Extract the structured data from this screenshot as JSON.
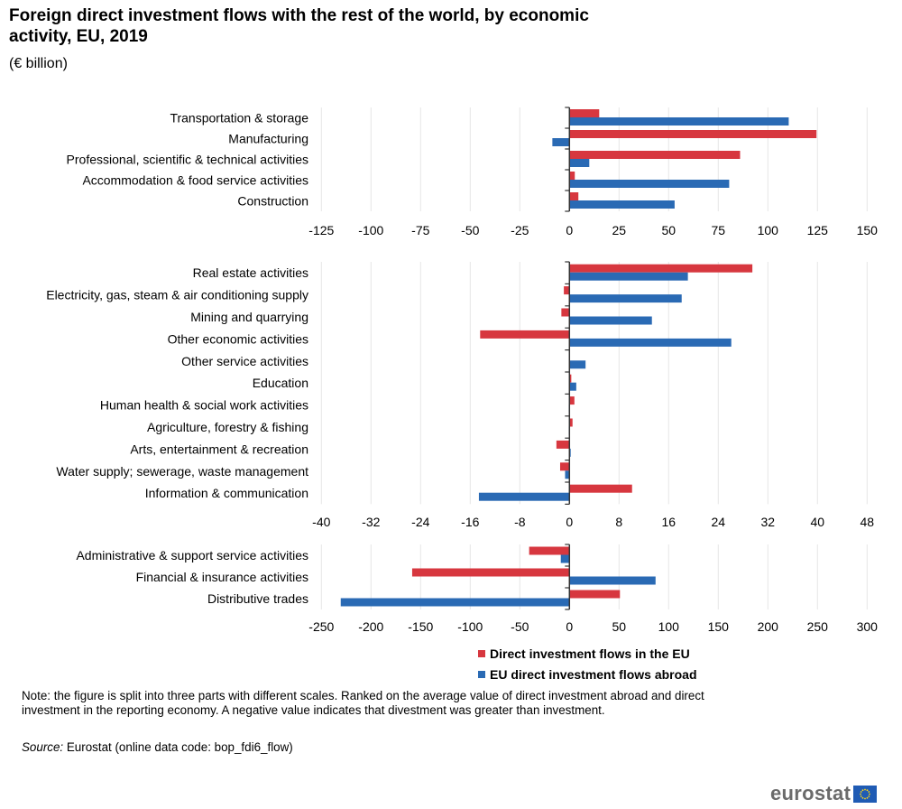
{
  "header": {
    "title": "Foreign direct investment flows with the rest of the world, by economic activity, EU, 2019",
    "subtitle": "(€ billion)"
  },
  "chart_data": [
    {
      "type": "bar",
      "orientation": "horizontal",
      "title": "Foreign direct investment flows with the rest of the world, by economic activity, EU, 2019",
      "subtitle": "(€ billion)",
      "categories": [
        "Transportation & storage",
        "Manufacturing",
        "Professional, scientific & technical activities",
        "Accommodation & food service activities",
        "Construction"
      ],
      "series": [
        {
          "name": "Direct investment flows in the EU",
          "values": [
            15,
            124.5,
            86,
            2.7,
            4.5
          ]
        },
        {
          "name": "EU direct investment flows abroad",
          "values": [
            110.5,
            -8.6,
            10,
            80.5,
            53
          ]
        }
      ],
      "xlim": [
        -125,
        150
      ],
      "xticks": [
        -125,
        -100,
        -75,
        -50,
        -25,
        0,
        25,
        50,
        75,
        100,
        125,
        150
      ],
      "grid": true
    },
    {
      "type": "bar",
      "orientation": "horizontal",
      "categories": [
        "Real estate activities",
        "Electricity, gas, steam & air conditioning supply",
        "Mining and quarrying",
        "Other economic activities",
        "Other service activities",
        "Education",
        "Human health & social work activities",
        "Agriculture, forestry & fishing",
        "Arts, entertainment & recreation",
        "Water supply; sewerage, waste management",
        "Information & communication"
      ],
      "series": [
        {
          "name": "Direct investment flows in the EU",
          "values": [
            29.5,
            -0.9,
            -1.3,
            -14.4,
            0,
            0.3,
            0.8,
            0.5,
            -2.1,
            -1.5,
            10.1
          ]
        },
        {
          "name": "EU direct investment flows abroad",
          "values": [
            19.1,
            18.1,
            13.3,
            26.1,
            2.6,
            1.1,
            -0.1,
            -0.1,
            0.2,
            -0.7,
            -14.6
          ]
        }
      ],
      "xlim": [
        -40,
        48
      ],
      "xticks": [
        -40,
        -32,
        -24,
        -16,
        -8,
        0,
        8,
        16,
        24,
        32,
        40,
        48
      ],
      "grid": true
    },
    {
      "type": "bar",
      "orientation": "horizontal",
      "categories": [
        "Administrative & support service activities",
        "Financial & insurance activities",
        "Distributive trades"
      ],
      "series": [
        {
          "name": "Direct investment flows in the EU",
          "values": [
            -40.6,
            -158.5,
            50.9
          ]
        },
        {
          "name": "EU direct investment flows abroad",
          "values": [
            -8.7,
            86.8,
            -230.5
          ]
        }
      ],
      "xlim": [
        -250,
        300
      ],
      "xticks": [
        -250,
        -200,
        -150,
        -100,
        -50,
        0,
        50,
        100,
        150,
        200,
        250,
        300
      ],
      "grid": true
    }
  ],
  "legend": {
    "position": "bottom-center",
    "items": [
      {
        "label": "Direct investment flows in the EU",
        "color": "#d7373f"
      },
      {
        "label": "EU direct investment flows abroad",
        "color": "#2a6ab4"
      }
    ]
  },
  "colors": {
    "inflow": "#d7373f",
    "outflow": "#2a6ab4",
    "grid": "#e6e6e6",
    "axis": "#333333"
  },
  "footer": {
    "note": "Note: the figure is split into three parts with different scales. Ranked on the average value of direct investment abroad and direct investment in the reporting economy. A negative value indicates that divestment was greater than investment.",
    "source_label": "Source:",
    "source_text": " Eurostat (online data code: bop_fdi6_flow)",
    "logo_text": "eurostat"
  }
}
